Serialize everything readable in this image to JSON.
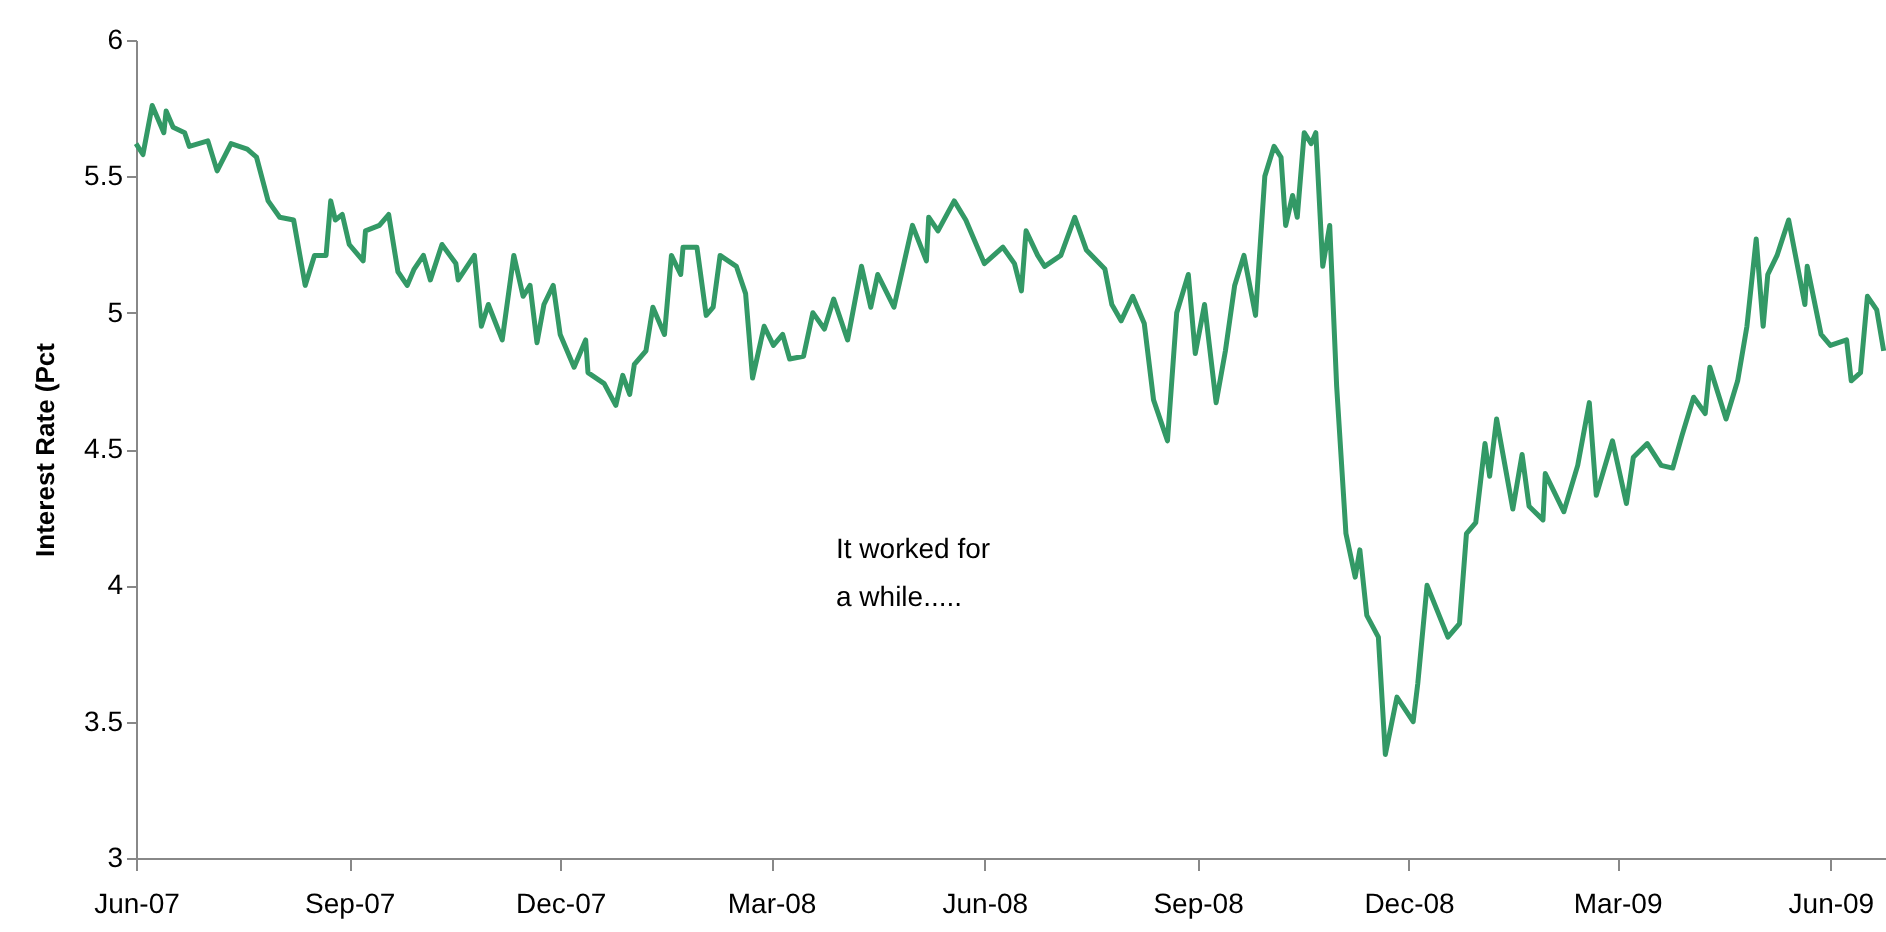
{
  "chart_data": {
    "type": "line",
    "ylabel": "Interest Rate (Pct",
    "annotations": [
      "It worked for\na while....."
    ],
    "xlim": [
      "2007-06-01",
      "2009-06-25"
    ],
    "ylim": [
      3,
      6
    ],
    "yticks": [
      3,
      3.5,
      4,
      4.5,
      5,
      5.5,
      6
    ],
    "xticks": [
      {
        "value": "2007-06-01",
        "label": "Jun-07"
      },
      {
        "value": "2007-09-01",
        "label": "Sep-07"
      },
      {
        "value": "2007-12-01",
        "label": "Dec-07"
      },
      {
        "value": "2008-03-01",
        "label": "Mar-08"
      },
      {
        "value": "2008-06-01",
        "label": "Jun-08"
      },
      {
        "value": "2008-09-01",
        "label": "Sep-08"
      },
      {
        "value": "2008-12-01",
        "label": "Dec-08"
      },
      {
        "value": "2009-03-01",
        "label": "Mar-09"
      },
      {
        "value": "2009-06-01",
        "label": "Jun-09"
      }
    ],
    "grid": false,
    "marker": "none",
    "line_style": "solid",
    "x": [
      "2007-06-01",
      "2007-06-04",
      "2007-06-08",
      "2007-06-13",
      "2007-06-14",
      "2007-06-17",
      "2007-06-22",
      "2007-06-24",
      "2007-07-02",
      "2007-07-06",
      "2007-07-12",
      "2007-07-19",
      "2007-07-23",
      "2007-07-28",
      "2007-08-02",
      "2007-08-08",
      "2007-08-13",
      "2007-08-17",
      "2007-08-22",
      "2007-08-24",
      "2007-08-26",
      "2007-08-29",
      "2007-09-01",
      "2007-09-07",
      "2007-09-08",
      "2007-09-14",
      "2007-09-18",
      "2007-09-22",
      "2007-09-26",
      "2007-09-29",
      "2007-10-03",
      "2007-10-06",
      "2007-10-11",
      "2007-10-17",
      "2007-10-18",
      "2007-10-25",
      "2007-10-28",
      "2007-10-31",
      "2007-11-06",
      "2007-11-11",
      "2007-11-15",
      "2007-11-18",
      "2007-11-21",
      "2007-11-24",
      "2007-11-28",
      "2007-12-01",
      "2007-12-07",
      "2007-12-12",
      "2007-12-13",
      "2007-12-20",
      "2007-12-25",
      "2007-12-28",
      "2007-12-31",
      "2008-01-02",
      "2008-01-07",
      "2008-01-10",
      "2008-01-15",
      "2008-01-18",
      "2008-01-22",
      "2008-01-23",
      "2008-01-29",
      "2008-02-02",
      "2008-02-05",
      "2008-02-08",
      "2008-02-15",
      "2008-02-19",
      "2008-02-22",
      "2008-02-27",
      "2008-03-02",
      "2008-03-06",
      "2008-03-09",
      "2008-03-15",
      "2008-03-19",
      "2008-03-24",
      "2008-03-28",
      "2008-04-03",
      "2008-04-09",
      "2008-04-13",
      "2008-04-16",
      "2008-04-23",
      "2008-05-01",
      "2008-05-07",
      "2008-05-08",
      "2008-05-12",
      "2008-05-19",
      "2008-05-24",
      "2008-06-01",
      "2008-06-09",
      "2008-06-14",
      "2008-06-17",
      "2008-06-19",
      "2008-06-24",
      "2008-06-27",
      "2008-07-04",
      "2008-07-10",
      "2008-07-15",
      "2008-07-23",
      "2008-07-26",
      "2008-07-30",
      "2008-08-04",
      "2008-08-09",
      "2008-08-13",
      "2008-08-19",
      "2008-08-23",
      "2008-08-28",
      "2008-08-31",
      "2008-09-04",
      "2008-09-09",
      "2008-09-13",
      "2008-09-17",
      "2008-09-21",
      "2008-09-26",
      "2008-09-30",
      "2008-10-04",
      "2008-10-07",
      "2008-10-09",
      "2008-10-12",
      "2008-10-14",
      "2008-10-17",
      "2008-10-20",
      "2008-10-22",
      "2008-10-25",
      "2008-10-28",
      "2008-10-31",
      "2008-11-04",
      "2008-11-08",
      "2008-11-10",
      "2008-11-13",
      "2008-11-18",
      "2008-11-21",
      "2008-11-26",
      "2008-12-03",
      "2008-12-05",
      "2008-12-09",
      "2008-12-18",
      "2008-12-23",
      "2008-12-26",
      "2008-12-30",
      "2009-01-03",
      "2009-01-05",
      "2009-01-08",
      "2009-01-15",
      "2009-01-19",
      "2009-01-22",
      "2009-01-28",
      "2009-01-29",
      "2009-02-06",
      "2009-02-12",
      "2009-02-17",
      "2009-02-20",
      "2009-02-27",
      "2009-03-05",
      "2009-03-08",
      "2009-03-14",
      "2009-03-20",
      "2009-03-25",
      "2009-03-29",
      "2009-04-03",
      "2009-04-08",
      "2009-04-10",
      "2009-04-17",
      "2009-04-22",
      "2009-04-26",
      "2009-04-30",
      "2009-05-03",
      "2009-05-05",
      "2009-05-09",
      "2009-05-14",
      "2009-05-21",
      "2009-05-22",
      "2009-05-28",
      "2009-06-01",
      "2009-06-08",
      "2009-06-10",
      "2009-06-14",
      "2009-06-17",
      "2009-06-21",
      "2009-06-24"
    ],
    "series": [
      {
        "color": "#339966",
        "values": [
          5.62,
          5.58,
          5.76,
          5.66,
          5.74,
          5.68,
          5.66,
          5.61,
          5.63,
          5.52,
          5.62,
          5.6,
          5.57,
          5.41,
          5.35,
          5.34,
          5.1,
          5.21,
          5.21,
          5.41,
          5.34,
          5.36,
          5.25,
          5.19,
          5.3,
          5.32,
          5.36,
          5.15,
          5.1,
          5.16,
          5.21,
          5.12,
          5.25,
          5.18,
          5.12,
          5.21,
          4.95,
          5.03,
          4.9,
          5.21,
          5.06,
          5.1,
          4.89,
          5.03,
          5.1,
          4.92,
          4.8,
          4.9,
          4.78,
          4.74,
          4.66,
          4.77,
          4.7,
          4.81,
          4.86,
          5.02,
          4.92,
          5.21,
          5.14,
          5.24,
          5.24,
          4.99,
          5.02,
          5.21,
          5.17,
          5.07,
          4.76,
          4.95,
          4.88,
          4.92,
          4.83,
          4.84,
          5.0,
          4.94,
          5.05,
          4.9,
          5.17,
          5.02,
          5.14,
          5.02,
          5.32,
          5.19,
          5.35,
          5.3,
          5.41,
          5.34,
          5.18,
          5.24,
          5.18,
          5.08,
          5.3,
          5.21,
          5.17,
          5.21,
          5.35,
          5.23,
          5.16,
          5.03,
          4.97,
          5.06,
          4.96,
          4.68,
          4.53,
          5.0,
          5.14,
          4.85,
          5.03,
          4.67,
          4.86,
          5.1,
          5.21,
          4.99,
          5.5,
          5.61,
          5.57,
          5.32,
          5.43,
          5.35,
          5.66,
          5.62,
          5.66,
          5.17,
          5.32,
          4.73,
          4.19,
          4.03,
          4.13,
          3.89,
          3.81,
          3.38,
          3.59,
          3.5,
          3.64,
          4.0,
          3.81,
          3.86,
          4.19,
          4.23,
          4.52,
          4.4,
          4.61,
          4.28,
          4.48,
          4.29,
          4.24,
          4.41,
          4.27,
          4.44,
          4.67,
          4.33,
          4.53,
          4.3,
          4.47,
          4.52,
          4.44,
          4.43,
          4.55,
          4.69,
          4.63,
          4.8,
          4.61,
          4.75,
          4.95,
          5.27,
          4.95,
          5.14,
          5.21,
          5.34,
          5.03,
          5.17,
          4.92,
          4.88,
          4.9,
          4.75,
          4.78,
          5.06,
          5.01,
          4.86
        ]
      }
    ]
  }
}
